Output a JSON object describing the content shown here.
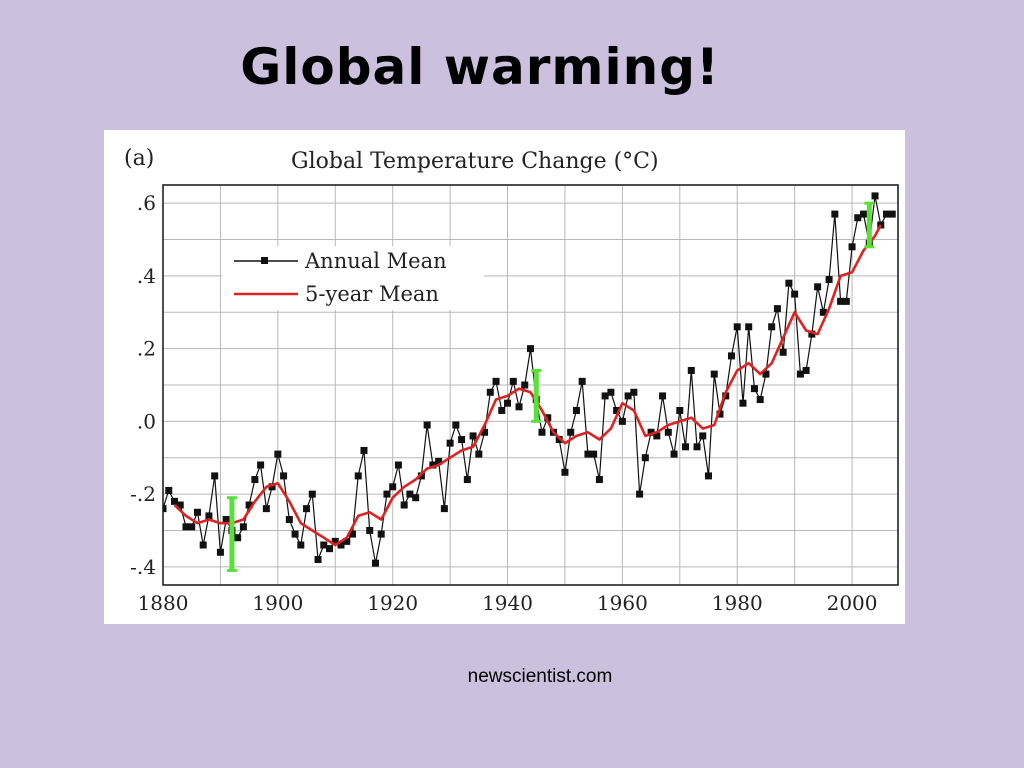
{
  "slide": {
    "title": "Global warming!",
    "source": "newscientist.com"
  },
  "colors": {
    "background": "#cbc0dd",
    "annual": "#111111",
    "five_year": "#dd2222",
    "uncertainty": "#5ae03a",
    "grid": "#b8b8b8"
  },
  "chart_data": {
    "type": "line",
    "panel_label": "(a)",
    "title": "Global Temperature Change (°C)",
    "xlabel": "",
    "ylabel": "",
    "xlim": [
      1880,
      2008
    ],
    "ylim": [
      -0.45,
      0.65
    ],
    "x_ticks": [
      1880,
      1900,
      1920,
      1940,
      1960,
      1980,
      2000
    ],
    "y_ticks": [
      {
        "value": 0.6,
        "label": ".6"
      },
      {
        "value": 0.4,
        "label": ".4"
      },
      {
        "value": 0.2,
        "label": ".2"
      },
      {
        "value": 0.0,
        "label": ".0"
      },
      {
        "value": -0.2,
        "label": "-.2"
      },
      {
        "value": -0.4,
        "label": "-.4"
      }
    ],
    "grid": true,
    "legend_position": "top-left",
    "series": [
      {
        "name": "Annual Mean",
        "style": "line-square-markers",
        "color": "#111111",
        "x": [
          1880,
          1881,
          1882,
          1883,
          1884,
          1885,
          1886,
          1887,
          1888,
          1889,
          1890,
          1891,
          1892,
          1893,
          1894,
          1895,
          1896,
          1897,
          1898,
          1899,
          1900,
          1901,
          1902,
          1903,
          1904,
          1905,
          1906,
          1907,
          1908,
          1909,
          1910,
          1911,
          1912,
          1913,
          1914,
          1915,
          1916,
          1917,
          1918,
          1919,
          1920,
          1921,
          1922,
          1923,
          1924,
          1925,
          1926,
          1927,
          1928,
          1929,
          1930,
          1931,
          1932,
          1933,
          1934,
          1935,
          1936,
          1937,
          1938,
          1939,
          1940,
          1941,
          1942,
          1943,
          1944,
          1945,
          1946,
          1947,
          1948,
          1949,
          1950,
          1951,
          1952,
          1953,
          1954,
          1955,
          1956,
          1957,
          1958,
          1959,
          1960,
          1961,
          1962,
          1963,
          1964,
          1965,
          1966,
          1967,
          1968,
          1969,
          1970,
          1971,
          1972,
          1973,
          1974,
          1975,
          1976,
          1977,
          1978,
          1979,
          1980,
          1981,
          1982,
          1983,
          1984,
          1985,
          1986,
          1987,
          1988,
          1989,
          1990,
          1991,
          1992,
          1993,
          1994,
          1995,
          1996,
          1997,
          1998,
          1999,
          2000,
          2001,
          2002,
          2003,
          2004,
          2005,
          2006,
          2007
        ],
        "y": [
          -0.24,
          -0.19,
          -0.22,
          -0.23,
          -0.29,
          -0.29,
          -0.25,
          -0.34,
          -0.26,
          -0.15,
          -0.36,
          -0.27,
          -0.3,
          -0.32,
          -0.29,
          -0.23,
          -0.16,
          -0.12,
          -0.24,
          -0.18,
          -0.09,
          -0.15,
          -0.27,
          -0.31,
          -0.34,
          -0.24,
          -0.2,
          -0.38,
          -0.34,
          -0.35,
          -0.33,
          -0.34,
          -0.33,
          -0.31,
          -0.15,
          -0.08,
          -0.3,
          -0.39,
          -0.31,
          -0.2,
          -0.18,
          -0.12,
          -0.23,
          -0.2,
          -0.21,
          -0.15,
          -0.01,
          -0.12,
          -0.11,
          -0.24,
          -0.06,
          -0.01,
          -0.05,
          -0.16,
          -0.04,
          -0.09,
          -0.03,
          0.08,
          0.11,
          0.03,
          0.05,
          0.11,
          0.04,
          0.1,
          0.2,
          0.06,
          -0.03,
          0.01,
          -0.03,
          -0.05,
          -0.14,
          -0.03,
          0.03,
          0.11,
          -0.09,
          -0.09,
          -0.16,
          0.07,
          0.08,
          0.03,
          0.0,
          0.07,
          0.08,
          -0.2,
          -0.1,
          -0.03,
          -0.04,
          0.07,
          -0.03,
          -0.09,
          0.03,
          -0.07,
          0.14,
          -0.07,
          -0.04,
          -0.15,
          0.13,
          0.02,
          0.07,
          0.18,
          0.26,
          0.05,
          0.26,
          0.09,
          0.06,
          0.13,
          0.26,
          0.31,
          0.19,
          0.38,
          0.35,
          0.13,
          0.14,
          0.24,
          0.37,
          0.3,
          0.39,
          0.57,
          0.33,
          0.33,
          0.48,
          0.56,
          0.57,
          0.49,
          0.62,
          0.54,
          0.57,
          0.57
        ]
      },
      {
        "name": "5-year Mean",
        "style": "line",
        "color": "#dd2222",
        "x": [
          1882,
          1884,
          1886,
          1888,
          1890,
          1892,
          1894,
          1896,
          1898,
          1900,
          1902,
          1904,
          1906,
          1908,
          1910,
          1912,
          1914,
          1916,
          1918,
          1920,
          1922,
          1924,
          1926,
          1928,
          1930,
          1932,
          1934,
          1936,
          1938,
          1940,
          1942,
          1944,
          1946,
          1948,
          1950,
          1952,
          1954,
          1956,
          1958,
          1960,
          1962,
          1964,
          1966,
          1968,
          1970,
          1972,
          1974,
          1976,
          1978,
          1980,
          1982,
          1984,
          1986,
          1988,
          1990,
          1992,
          1994,
          1996,
          1998,
          2000,
          2002,
          2004,
          2005
        ],
        "y": [
          -0.23,
          -0.26,
          -0.28,
          -0.27,
          -0.28,
          -0.28,
          -0.27,
          -0.22,
          -0.18,
          -0.17,
          -0.22,
          -0.28,
          -0.3,
          -0.32,
          -0.34,
          -0.32,
          -0.26,
          -0.25,
          -0.27,
          -0.21,
          -0.18,
          -0.16,
          -0.13,
          -0.12,
          -0.1,
          -0.08,
          -0.07,
          -0.01,
          0.06,
          0.07,
          0.09,
          0.08,
          0.03,
          -0.03,
          -0.06,
          -0.04,
          -0.03,
          -0.05,
          -0.02,
          0.05,
          0.03,
          -0.04,
          -0.03,
          -0.01,
          0.0,
          0.01,
          -0.02,
          -0.01,
          0.08,
          0.14,
          0.16,
          0.13,
          0.16,
          0.23,
          0.3,
          0.25,
          0.24,
          0.31,
          0.4,
          0.41,
          0.47,
          0.51,
          0.54
        ]
      }
    ],
    "uncertainty_bars": [
      {
        "x": 1892,
        "low": -0.41,
        "high": -0.21
      },
      {
        "x": 1945,
        "low": 0.0,
        "high": 0.14
      },
      {
        "x": 2003,
        "low": 0.48,
        "high": 0.6
      }
    ]
  }
}
